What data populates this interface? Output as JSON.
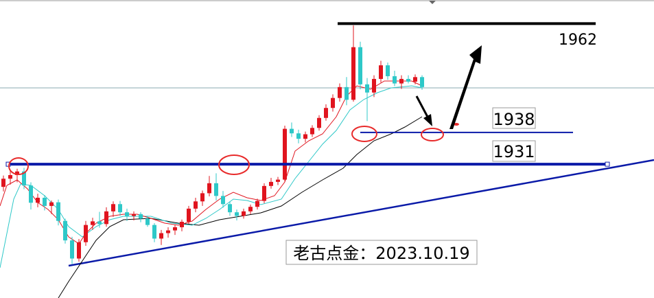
{
  "chart_data": {
    "type": "candlestick",
    "ylim": [
      1901.5,
      1967.2
    ],
    "up_color": "#e0141e",
    "down_color": "#2ec8c8",
    "series": [
      {
        "open": [
          1926,
          1927.8,
          1928.6,
          1929.4,
          1926.3,
          1922.5,
          1923.6,
          1921.8,
          1922.6,
          1918.5,
          1914.2,
          1910.2,
          1913.8,
          1917.6,
          1918.4,
          1917.8,
          1920.6,
          1922.2,
          1920.4,
          1919.6,
          1920.0,
          1919.0,
          1917.6,
          1914.6,
          1915.8,
          1916.4,
          1917.1,
          1918.3,
          1921.2,
          1922.8,
          1924.6,
          1926.8,
          1924.0,
          1922.2,
          1920.4,
          1919.6,
          1920.6,
          1921.6,
          1922.9,
          1926.2,
          1927.1,
          1927.6,
          1938.8,
          1937.8,
          1936.6,
          1937.6,
          1939.0,
          1941.2,
          1943.4,
          1945.6,
          1948.0,
          1945.2,
          1956.8,
          1948.6,
          1946.8,
          1949.8,
          1952.8,
          1950.4,
          1948.8,
          1949.8,
          1949.2,
          1950.2
        ],
        "high": [
          1928.5,
          1929.5,
          1930,
          1930.2,
          1927,
          1924.5,
          1924.2,
          1923,
          1923.2,
          1919,
          1915,
          1914.5,
          1918.5,
          1919.2,
          1920.5,
          1921.5,
          1922.8,
          1922.9,
          1921.2,
          1920.6,
          1920.4,
          1919.6,
          1918,
          1916.5,
          1917.1,
          1917.6,
          1918.8,
          1921.8,
          1923.6,
          1925.2,
          1928.4,
          1929.0,
          1925.1,
          1922.8,
          1921.0,
          1921.2,
          1922.1,
          1923.4,
          1926.8,
          1928.0,
          1928.2,
          1939.5,
          1940.2,
          1938.6,
          1938.2,
          1939.6,
          1941.8,
          1944.2,
          1946.4,
          1948.8,
          1950.2,
          1961.6,
          1958.0,
          1950.0,
          1950.6,
          1953.8,
          1953.4,
          1951.6,
          1950.6,
          1950.6,
          1950.8,
          1950.6
        ],
        "low": [
          1925,
          1926.5,
          1927,
          1925.5,
          1921,
          1921.5,
          1920.8,
          1920,
          1917.5,
          1913.5,
          1909,
          1909.5,
          1913,
          1916.5,
          1917,
          1917.2,
          1919.4,
          1919.6,
          1918.5,
          1918.6,
          1918.2,
          1917.2,
          1913.8,
          1913.2,
          1914.8,
          1915.4,
          1916.2,
          1917.8,
          1920.4,
          1921.8,
          1923.9,
          1923.0,
          1921.4,
          1919.6,
          1918.6,
          1919.0,
          1920.0,
          1921.0,
          1922.4,
          1925.6,
          1926.4,
          1927.2,
          1937.0,
          1935.6,
          1935.8,
          1937.0,
          1938.4,
          1940.6,
          1942.6,
          1944.8,
          1944.0,
          1944.8,
          1947.5,
          1940.5,
          1945.8,
          1949.0,
          1949.6,
          1948.2,
          1947.6,
          1948.8,
          1948.6,
          1947.4
        ],
        "close": [
          1927.8,
          1928.6,
          1929.4,
          1926.3,
          1922.5,
          1923.6,
          1921.8,
          1922.6,
          1918.5,
          1914.2,
          1910.2,
          1913.8,
          1917.6,
          1918.4,
          1917.8,
          1920.6,
          1922.2,
          1920.4,
          1919.6,
          1920.0,
          1919.0,
          1917.6,
          1914.6,
          1915.8,
          1916.4,
          1917.1,
          1918.3,
          1921.2,
          1922.8,
          1924.6,
          1926.8,
          1924.0,
          1922.2,
          1920.4,
          1919.6,
          1920.6,
          1921.6,
          1922.9,
          1926.2,
          1927.1,
          1927.6,
          1938.8,
          1937.8,
          1936.6,
          1937.6,
          1939.0,
          1941.2,
          1943.4,
          1945.6,
          1948.0,
          1945.2,
          1956.8,
          1948.6,
          1946.8,
          1949.8,
          1952.8,
          1950.4,
          1948.8,
          1949.8,
          1949.2,
          1950.2,
          1948.0
        ]
      }
    ],
    "levels": [
      1962,
      1938,
      1931
    ],
    "level_colors": [
      "#000000",
      "#0a1aa8",
      "#0a1aa8"
    ],
    "annotation": "老古点金：2023.10.19"
  }
}
